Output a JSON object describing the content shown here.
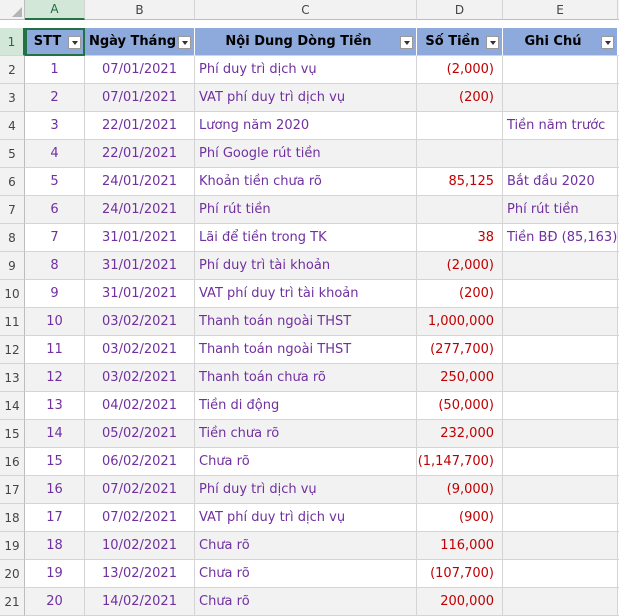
{
  "columns": [
    "A",
    "B",
    "C",
    "D",
    "E"
  ],
  "header": {
    "stt": "STT",
    "date": "Ngày Tháng",
    "desc": "Nội Dung Dòng Tiền",
    "amount": "Số Tiền",
    "note": "Ghi Chú"
  },
  "header_row_number": "1",
  "rows": [
    {
      "rn": "2",
      "stt": "1",
      "date": "07/01/2021",
      "desc": "Phí duy trì dịch vụ",
      "amount": "(2,000)",
      "note": ""
    },
    {
      "rn": "3",
      "stt": "2",
      "date": "07/01/2021",
      "desc": "VAT phí duy trì dịch vụ",
      "amount": "(200)",
      "note": ""
    },
    {
      "rn": "4",
      "stt": "3",
      "date": "22/01/2021",
      "desc": "Lương năm 2020",
      "amount": "",
      "note": "Tiền năm trước"
    },
    {
      "rn": "5",
      "stt": "4",
      "date": "22/01/2021",
      "desc": "Phí Google rút tiền",
      "amount": "",
      "note": ""
    },
    {
      "rn": "6",
      "stt": "5",
      "date": "24/01/2021",
      "desc": "Khoản tiền chưa rõ",
      "amount": "85,125",
      "note": "Bắt đầu 2020"
    },
    {
      "rn": "7",
      "stt": "6",
      "date": "24/01/2021",
      "desc": "Phí rút tiền",
      "amount": "",
      "note": "Phí rút tiền"
    },
    {
      "rn": "8",
      "stt": "7",
      "date": "31/01/2021",
      "desc": "Lãi để tiền trong TK",
      "amount": "38",
      "note": "Tiền BĐ (85,163)"
    },
    {
      "rn": "9",
      "stt": "8",
      "date": "31/01/2021",
      "desc": "Phí duy trì tài khoản",
      "amount": "(2,000)",
      "note": ""
    },
    {
      "rn": "10",
      "stt": "9",
      "date": "31/01/2021",
      "desc": "VAT phí duy trì tài khoản",
      "amount": "(200)",
      "note": ""
    },
    {
      "rn": "11",
      "stt": "10",
      "date": "03/02/2021",
      "desc": "Thanh toán ngoài THST",
      "amount": "1,000,000",
      "note": ""
    },
    {
      "rn": "12",
      "stt": "11",
      "date": "03/02/2021",
      "desc": "Thanh toán ngoài THST",
      "amount": "(277,700)",
      "note": ""
    },
    {
      "rn": "13",
      "stt": "12",
      "date": "03/02/2021",
      "desc": "Thanh toán chưa rõ",
      "amount": "250,000",
      "note": ""
    },
    {
      "rn": "14",
      "stt": "13",
      "date": "04/02/2021",
      "desc": "Tiền di động",
      "amount": "(50,000)",
      "note": ""
    },
    {
      "rn": "15",
      "stt": "14",
      "date": "05/02/2021",
      "desc": "Tiền chưa rõ",
      "amount": "232,000",
      "note": ""
    },
    {
      "rn": "16",
      "stt": "15",
      "date": "06/02/2021",
      "desc": "Chưa rõ",
      "amount": "(1,147,700)",
      "note": ""
    },
    {
      "rn": "17",
      "stt": "16",
      "date": "07/02/2021",
      "desc": "Phí duy trì dịch vụ",
      "amount": "(9,000)",
      "note": ""
    },
    {
      "rn": "18",
      "stt": "17",
      "date": "07/02/2021",
      "desc": "VAT phí duy trì dịch vụ",
      "amount": "(900)",
      "note": ""
    },
    {
      "rn": "19",
      "stt": "18",
      "date": "10/02/2021",
      "desc": "Chưa rõ",
      "amount": "116,000",
      "note": ""
    },
    {
      "rn": "20",
      "stt": "19",
      "date": "13/02/2021",
      "desc": "Chưa rõ",
      "amount": "(107,700)",
      "note": ""
    },
    {
      "rn": "21",
      "stt": "20",
      "date": "14/02/2021",
      "desc": "Chưa rõ",
      "amount": "200,000",
      "note": ""
    }
  ],
  "colors": {
    "header_fill": "#8ea9db",
    "band_fill": "#f2f2f2",
    "text_purple": "#7030a0",
    "text_red": "#c00000",
    "selection_green": "#217346"
  }
}
